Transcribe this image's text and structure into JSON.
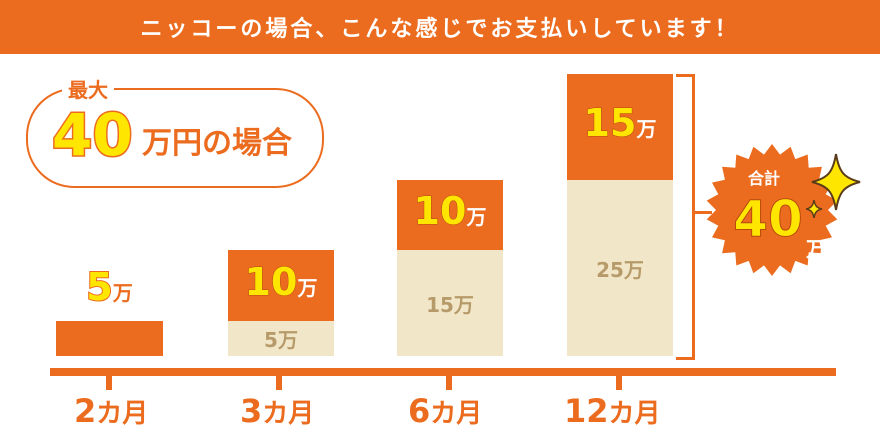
{
  "banner": {
    "text": "ニッコーの場合、こんな感じでお支払いしています！"
  },
  "max_box": {
    "label": "最大",
    "amount": "40",
    "unit": "万円の場合"
  },
  "chart_data": {
    "type": "bar",
    "categories": [
      "2カ月",
      "3カ月",
      "6カ月",
      "12カ月"
    ],
    "series": [
      {
        "values": [
          0,
          5,
          15,
          25
        ]
      },
      {
        "values": [
          5,
          10,
          10,
          15
        ]
      }
    ],
    "unit": "万",
    "ylim": [
      0,
      40
    ],
    "total": {
      "label": "合計",
      "value": "40",
      "unit": "万"
    },
    "colors": {
      "previous": "#F1E7C8",
      "new": "#EC6C1F",
      "highlight": "#FFE600"
    }
  }
}
